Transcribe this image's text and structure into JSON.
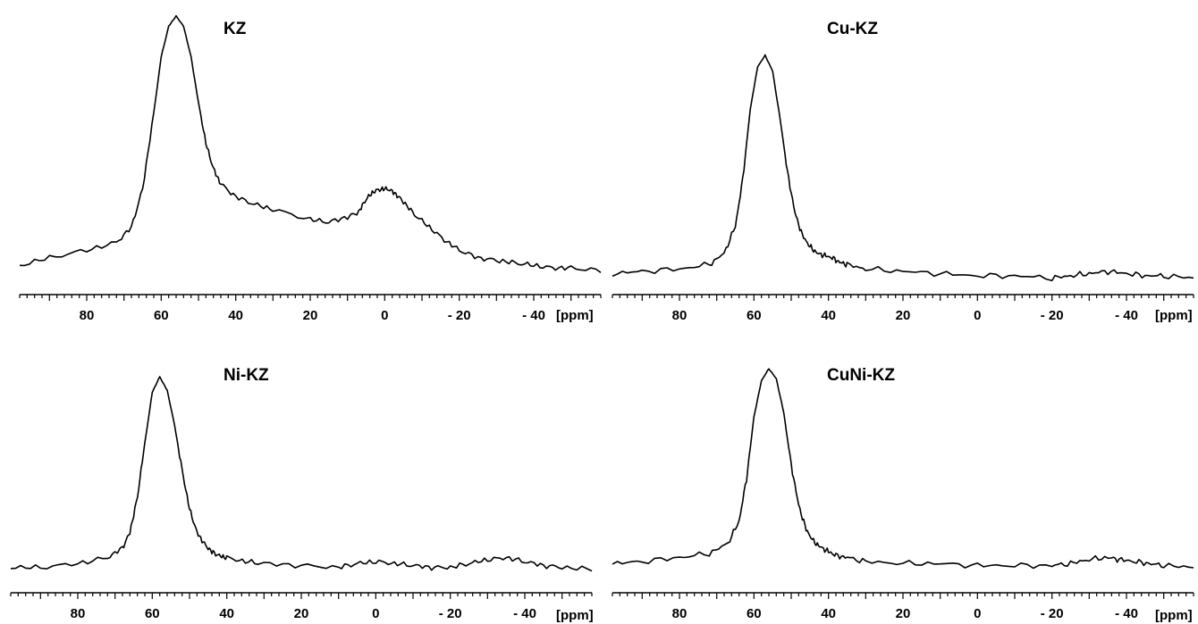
{
  "chart_data": [
    {
      "type": "line",
      "title": "KZ",
      "unit_label": "[ppm]",
      "xlim": [
        98,
        -58
      ],
      "ylim": [
        0,
        1
      ],
      "reversed_x": true,
      "grid": false,
      "tick_values": [
        80,
        60,
        40,
        20,
        0,
        -20,
        -40
      ],
      "tick_labels": [
        "80",
        "60",
        "40",
        "20",
        "0",
        "- 20",
        "- 40"
      ],
      "series": [
        {
          "x": [
            98,
            90,
            80,
            72,
            68,
            65,
            62,
            60,
            58,
            56,
            54,
            52,
            50,
            48,
            46,
            44,
            40,
            35,
            30,
            20,
            15,
            10,
            7,
            5,
            3,
            1,
            -1,
            -3,
            -5,
            -8,
            -12,
            -16,
            -20,
            -25,
            -30,
            -35,
            -40,
            -45,
            -50,
            -58
          ],
          "y": [
            0.02,
            0.05,
            0.08,
            0.11,
            0.17,
            0.32,
            0.62,
            0.84,
            0.96,
            1.0,
            0.96,
            0.84,
            0.66,
            0.5,
            0.4,
            0.34,
            0.29,
            0.26,
            0.24,
            0.2,
            0.19,
            0.21,
            0.23,
            0.28,
            0.31,
            0.32,
            0.32,
            0.3,
            0.27,
            0.22,
            0.17,
            0.12,
            0.08,
            0.05,
            0.04,
            0.03,
            0.02,
            0.01,
            0.01,
            0.0
          ]
        }
      ]
    },
    {
      "type": "line",
      "title": "Cu-KZ",
      "unit_label": "[ppm]",
      "xlim": [
        98,
        -58
      ],
      "ylim": [
        0,
        1
      ],
      "reversed_x": true,
      "grid": false,
      "tick_values": [
        80,
        60,
        40,
        20,
        0,
        -20,
        -40
      ],
      "tick_labels": [
        "80",
        "60",
        "40",
        "20",
        "0",
        "- 20",
        "- 40"
      ],
      "series": [
        {
          "x": [
            98,
            90,
            80,
            72,
            68,
            65,
            63,
            61,
            59,
            57,
            55,
            53,
            51,
            49,
            47,
            45,
            43,
            41,
            39,
            37,
            35,
            30,
            20,
            10,
            0,
            -10,
            -20,
            -25,
            -30,
            -35,
            -40,
            -45,
            -50,
            -58
          ],
          "y": [
            0.03,
            0.04,
            0.05,
            0.07,
            0.12,
            0.24,
            0.45,
            0.76,
            0.95,
            1.0,
            0.93,
            0.72,
            0.48,
            0.3,
            0.2,
            0.15,
            0.12,
            0.11,
            0.1,
            0.08,
            0.07,
            0.05,
            0.04,
            0.03,
            0.02,
            0.02,
            0.01,
            0.02,
            0.03,
            0.04,
            0.03,
            0.02,
            0.02,
            0.01
          ]
        }
      ]
    },
    {
      "type": "line",
      "title": "Ni-KZ",
      "unit_label": "[ppm]",
      "xlim": [
        98,
        -58
      ],
      "ylim": [
        0,
        1
      ],
      "reversed_x": true,
      "grid": false,
      "tick_values": [
        80,
        60,
        40,
        20,
        0,
        -20,
        -40
      ],
      "tick_labels": [
        "80",
        "60",
        "40",
        "20",
        "0",
        "- 20",
        "- 40"
      ],
      "series": [
        {
          "x": [
            98,
            90,
            80,
            72,
            68,
            66,
            64,
            62,
            60,
            58,
            56,
            54,
            52,
            50,
            48,
            46,
            44,
            42,
            40,
            35,
            30,
            20,
            10,
            5,
            0,
            -5,
            -10,
            -15,
            -20,
            -25,
            -30,
            -35,
            -40,
            -45,
            -50,
            -58
          ],
          "y": [
            0.02,
            0.02,
            0.04,
            0.07,
            0.12,
            0.2,
            0.38,
            0.66,
            0.92,
            1.0,
            0.93,
            0.75,
            0.52,
            0.32,
            0.2,
            0.14,
            0.1,
            0.08,
            0.07,
            0.05,
            0.04,
            0.03,
            0.02,
            0.04,
            0.05,
            0.04,
            0.03,
            0.02,
            0.02,
            0.04,
            0.06,
            0.07,
            0.05,
            0.03,
            0.02,
            0.01
          ]
        }
      ]
    },
    {
      "type": "line",
      "title": "CuNi-KZ",
      "unit_label": "[ppm]",
      "xlim": [
        98,
        -58
      ],
      "ylim": [
        0,
        1
      ],
      "reversed_x": true,
      "grid": false,
      "tick_values": [
        80,
        60,
        40,
        20,
        0,
        -20,
        -40
      ],
      "tick_labels": [
        "80",
        "60",
        "40",
        "20",
        "0",
        "- 20",
        "- 40"
      ],
      "series": [
        {
          "x": [
            98,
            90,
            80,
            72,
            67,
            64,
            62,
            60,
            58,
            56,
            54,
            52,
            50,
            48,
            46,
            44,
            42,
            40,
            38,
            35,
            30,
            20,
            10,
            0,
            -10,
            -20,
            -25,
            -30,
            -35,
            -38,
            -42,
            -46,
            -50,
            -58
          ],
          "y": [
            0.03,
            0.04,
            0.06,
            0.08,
            0.13,
            0.24,
            0.45,
            0.76,
            0.94,
            1.0,
            0.95,
            0.78,
            0.52,
            0.32,
            0.2,
            0.14,
            0.11,
            0.09,
            0.07,
            0.06,
            0.04,
            0.03,
            0.03,
            0.02,
            0.02,
            0.02,
            0.03,
            0.05,
            0.06,
            0.05,
            0.04,
            0.03,
            0.02,
            0.01
          ]
        }
      ]
    }
  ]
}
